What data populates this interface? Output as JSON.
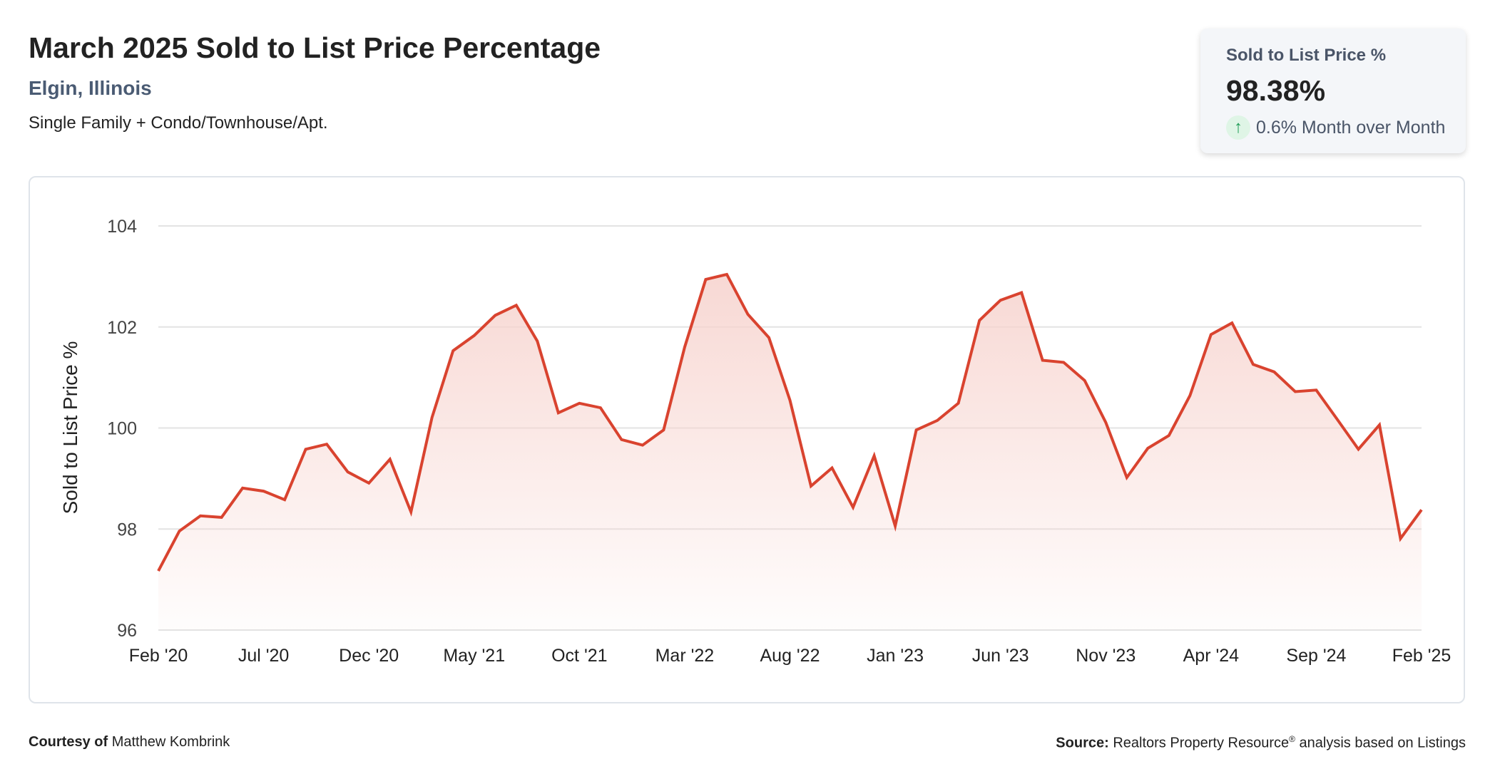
{
  "header": {
    "title": "March 2025 Sold to List Price Percentage",
    "location": "Elgin, Illinois",
    "description": "Single Family + Condo/Townhouse/Apt."
  },
  "kpi": {
    "label": "Sold to List Price %",
    "value": "98.38%",
    "change": "0.6% Month over Month",
    "direction": "up",
    "icon": "arrow-up-icon"
  },
  "footer": {
    "courtesy_label": "Courtesy of",
    "courtesy_name": "Matthew Kombrink",
    "source_label": "Source:",
    "source_text": "Realtors Property Resource",
    "source_mark": "®",
    "source_suffix": " analysis based on Listings"
  },
  "colors": {
    "line": "#d9432f",
    "fill": "#f7d4cf",
    "grid": "#e3e3e3"
  },
  "chart_data": {
    "type": "area",
    "title": "March 2025 Sold to List Price Percentage",
    "xlabel": "",
    "ylabel": "Sold to List Price %",
    "ylim": [
      96,
      104
    ],
    "yticks": [
      96,
      98,
      100,
      102,
      104
    ],
    "grid": true,
    "x_tick_labels": [
      "Feb '20",
      "Jul '20",
      "Dec '20",
      "May '21",
      "Oct '21",
      "Mar '22",
      "Aug '22",
      "Jan '23",
      "Jun '23",
      "Nov '23",
      "Apr '24",
      "Sep '24",
      "Feb '25"
    ],
    "x_tick_every": 5,
    "x_start": "Feb 2020",
    "x_end": "Feb 2025",
    "series": [
      {
        "name": "Sold to List Price %",
        "values": [
          97.17,
          97.96,
          98.26,
          98.23,
          98.81,
          98.75,
          98.58,
          99.58,
          99.68,
          99.13,
          98.91,
          99.38,
          98.34,
          100.21,
          101.53,
          101.83,
          102.23,
          102.43,
          101.72,
          100.3,
          100.49,
          100.4,
          99.77,
          99.66,
          99.96,
          101.6,
          102.94,
          103.04,
          102.25,
          101.79,
          100.55,
          98.85,
          99.21,
          98.43,
          99.45,
          98.06,
          99.96,
          100.15,
          100.49,
          102.13,
          102.53,
          102.68,
          101.34,
          101.3,
          100.94,
          100.11,
          99.02,
          99.6,
          99.85,
          100.64,
          101.85,
          102.08,
          101.26,
          101.11,
          100.72,
          100.75,
          100.17,
          99.58,
          100.06,
          97.81,
          98.38
        ]
      }
    ]
  }
}
